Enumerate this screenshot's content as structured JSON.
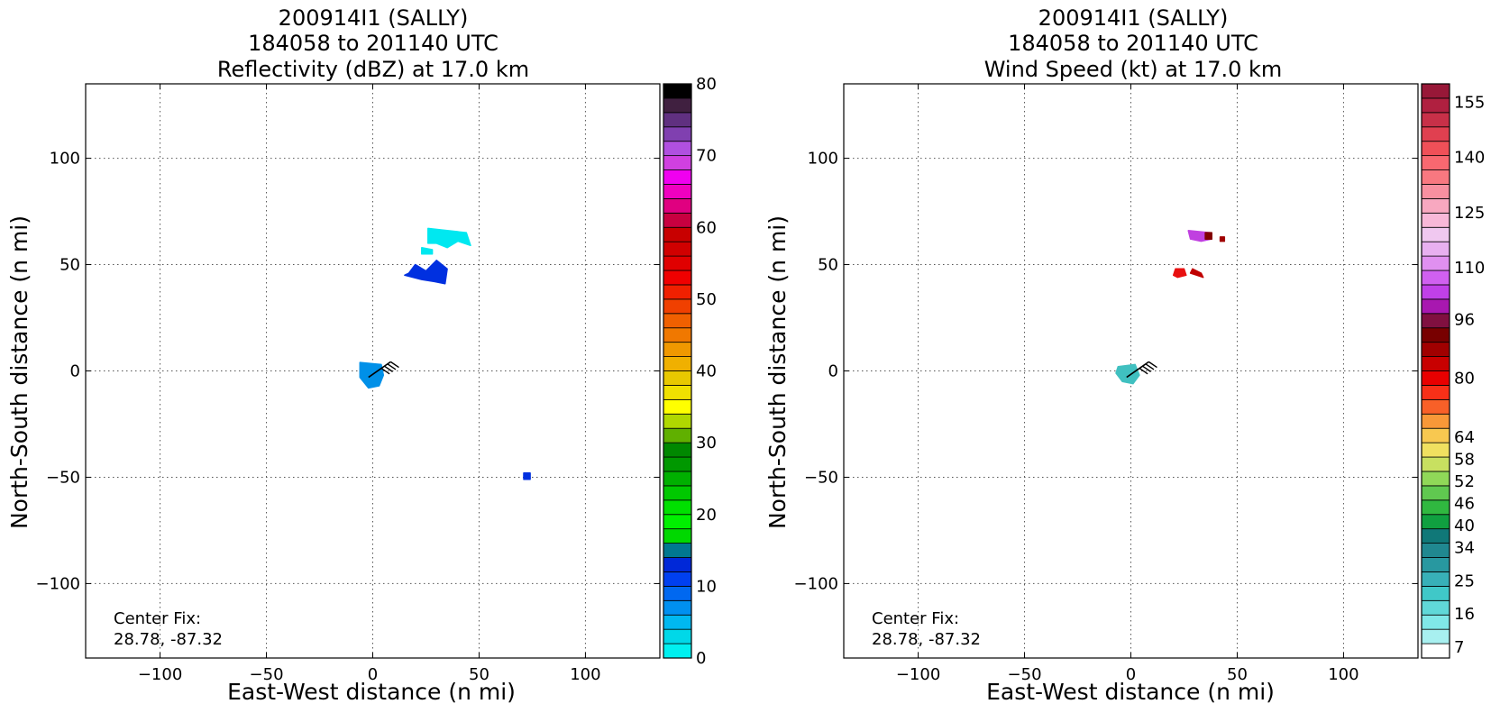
{
  "chart_data": [
    {
      "type": "heatmap",
      "title_lines": [
        "200914I1 (SALLY)",
        "184058 to 201140 UTC",
        "Reflectivity (dBZ) at 17.0 km"
      ],
      "xlabel": "East-West distance (n mi)",
      "ylabel": "North-South distance (n mi)",
      "xlim": [
        -135,
        135
      ],
      "ylim": [
        -135,
        135
      ],
      "xticks": [
        -100,
        -50,
        0,
        50,
        100
      ],
      "yticks": [
        -100,
        -50,
        0,
        50,
        100
      ],
      "xtick_labels": [
        "−100",
        "−50",
        "0",
        "50",
        "100"
      ],
      "ytick_labels": [
        "−100",
        "−50",
        "0",
        "50",
        "100"
      ],
      "grid": true,
      "annotation_lines": [
        "Center Fix:",
        "28.78, -87.32"
      ],
      "colorbar": {
        "min": 0,
        "max": 80,
        "ticks": [
          0,
          10,
          20,
          30,
          40,
          50,
          60,
          70,
          80
        ],
        "tick_labels": [
          "0",
          "10",
          "20",
          "30",
          "40",
          "50",
          "60",
          "70",
          "80"
        ],
        "colors": [
          "#00f0f0",
          "#00d8e8",
          "#00b8f0",
          "#0090f0",
          "#0068f0",
          "#0040f0",
          "#0028d8",
          "#007890",
          "#00d800",
          "#00f000",
          "#00e000",
          "#00c800",
          "#00b000",
          "#009800",
          "#008800",
          "#60b000",
          "#b0d800",
          "#ffff00",
          "#f0e000",
          "#e8c800",
          "#f0b000",
          "#f09800",
          "#f07800",
          "#f06000",
          "#f04000",
          "#f02000",
          "#f00000",
          "#e00000",
          "#d00000",
          "#c80000",
          "#c80040",
          "#e00080",
          "#f000c0",
          "#f000f0",
          "#d040e0",
          "#b050e0",
          "#8040b0",
          "#603080",
          "#402040",
          "#000000"
        ]
      },
      "regions": [
        {
          "name": "echo-near-center",
          "value": 12,
          "color": "#0090e8",
          "points": [
            [
              -6,
              4
            ],
            [
              4,
              3
            ],
            [
              5,
              -2
            ],
            [
              3,
              -7
            ],
            [
              -2,
              -8
            ],
            [
              -6,
              -3
            ]
          ]
        },
        {
          "name": "echo-north-band",
          "value": 10,
          "color": "#0030e0",
          "points": [
            [
              17,
              46
            ],
            [
              20,
              50
            ],
            [
              25,
              47
            ],
            [
              30,
              52
            ],
            [
              35,
              48
            ],
            [
              34,
              41
            ],
            [
              29,
              42
            ],
            [
              23,
              43
            ],
            [
              15,
              45
            ]
          ]
        },
        {
          "name": "echo-north-outer",
          "value": 4,
          "color": "#00e8f0",
          "points": [
            [
              26,
              67
            ],
            [
              44,
              65
            ],
            [
              46,
              59
            ],
            [
              40,
              61
            ],
            [
              35,
              58
            ],
            [
              30,
              60
            ],
            [
              26,
              60
            ]
          ]
        },
        {
          "name": "echo-north-fragment",
          "value": 4,
          "color": "#00e8f0",
          "points": [
            [
              23,
              58
            ],
            [
              28,
              57
            ],
            [
              28,
              55
            ],
            [
              23,
              55
            ]
          ]
        },
        {
          "name": "echo-southeast-dot",
          "value": 10,
          "color": "#0030e0",
          "points": [
            [
              71,
              -48
            ],
            [
              74,
              -48
            ],
            [
              74,
              -51
            ],
            [
              71,
              -51
            ]
          ]
        }
      ],
      "wind_barb": {
        "x": -2,
        "y": -3,
        "direction_deg": 55
      }
    },
    {
      "type": "heatmap",
      "title_lines": [
        "200914I1 (SALLY)",
        "184058 to 201140 UTC",
        "Wind Speed (kt) at 17.0 km"
      ],
      "xlabel": "East-West distance (n mi)",
      "ylabel": "North-South distance (n mi)",
      "xlim": [
        -135,
        135
      ],
      "ylim": [
        -135,
        135
      ],
      "xticks": [
        -100,
        -50,
        0,
        50,
        100
      ],
      "yticks": [
        -100,
        -50,
        0,
        50,
        100
      ],
      "xtick_labels": [
        "−100",
        "−50",
        "0",
        "50",
        "100"
      ],
      "ytick_labels": [
        "−100",
        "−50",
        "0",
        "50",
        "100"
      ],
      "grid": true,
      "annotation_lines": [
        "Center Fix:",
        "28.78, -87.32"
      ],
      "colorbar": {
        "min": 4,
        "max": 160,
        "ticks": [
          7,
          16,
          25,
          34,
          40,
          46,
          52,
          58,
          64,
          80,
          96,
          110,
          125,
          140,
          155
        ],
        "tick_labels": [
          "7",
          "16",
          "25",
          "34",
          "40",
          "46",
          "52",
          "58",
          "64",
          "80",
          "96",
          "110",
          "125",
          "140",
          "155"
        ],
        "colors": [
          "#ffffff",
          "#a8f0f0",
          "#80e8e8",
          "#60d8d8",
          "#40c8c8",
          "#38b0b8",
          "#2898a0",
          "#208890",
          "#107878",
          "#10a040",
          "#30b840",
          "#60c850",
          "#90d858",
          "#c8e060",
          "#f0e060",
          "#f8c850",
          "#f89838",
          "#f86028",
          "#f83018",
          "#e80000",
          "#c80000",
          "#a00000",
          "#780000",
          "#801040",
          "#a818b0",
          "#c040e8",
          "#d060f0",
          "#e090f0",
          "#e8b0f0",
          "#f0c8f0",
          "#f8b8d8",
          "#f8a8c0",
          "#f890a0",
          "#f87880",
          "#f86870",
          "#f05058",
          "#e04050",
          "#c83048",
          "#b02040",
          "#981838"
        ]
      },
      "regions": [
        {
          "name": "wind-near-center",
          "value": 18,
          "color": "#40c0c0",
          "points": [
            [
              -6,
              2
            ],
            [
              2,
              3
            ],
            [
              4,
              -2
            ],
            [
              1,
              -6
            ],
            [
              -4,
              -5
            ],
            [
              -7,
              -1
            ]
          ]
        },
        {
          "name": "wind-north-band",
          "value": 82,
          "color": "#c040e0",
          "points": [
            [
              27,
              66
            ],
            [
              37,
              65
            ],
            [
              38,
              62
            ],
            [
              33,
              61
            ],
            [
              28,
              62
            ]
          ]
        },
        {
          "name": "wind-north-maroon",
          "value": 60,
          "color": "#800000",
          "points": [
            [
              35,
              65
            ],
            [
              38,
              65
            ],
            [
              38,
              62
            ],
            [
              35,
              62
            ]
          ]
        },
        {
          "name": "wind-north-dot",
          "value": 60,
          "color": "#a00000",
          "points": [
            [
              42,
              63
            ],
            [
              44,
              63
            ],
            [
              44,
              61
            ],
            [
              42,
              61
            ]
          ]
        },
        {
          "name": "wind-mid-red",
          "value": 55,
          "color": "#e81010",
          "points": [
            [
              21,
              48
            ],
            [
              25,
              48
            ],
            [
              26,
              45
            ],
            [
              22,
              44
            ],
            [
              20,
              45
            ]
          ]
        },
        {
          "name": "wind-mid-red-east",
          "value": 58,
          "color": "#c00000",
          "points": [
            [
              29,
              48
            ],
            [
              33,
              46
            ],
            [
              34,
              44
            ],
            [
              31,
              45
            ],
            [
              28,
              46
            ]
          ]
        }
      ],
      "wind_barb": {
        "x": -2,
        "y": -3,
        "direction_deg": 55
      }
    }
  ]
}
